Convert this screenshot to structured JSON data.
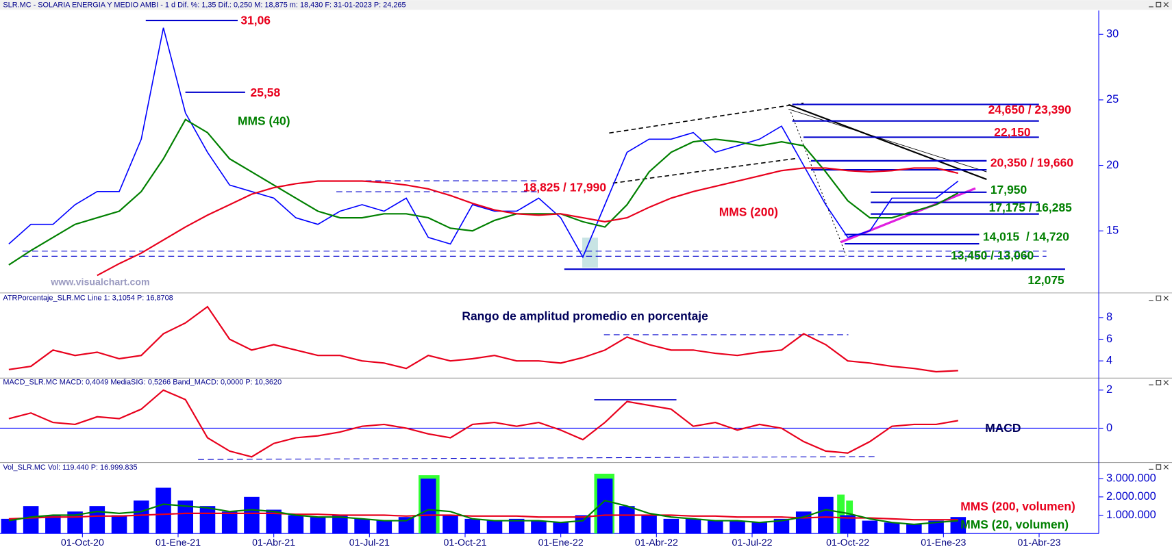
{
  "chart_data": [
    {
      "type": "line",
      "title": "SLR.MC - SOLARIA ENERGIA Y MEDIO AMBI - 1 d Dif. %: 1,35 Dif.: 0,250 M: 18,875 m: 18,430 F: 31-01-2023 P: 24,265",
      "watermark": "www.visualchart.com",
      "x": [
        -10,
        -7,
        -4,
        -1,
        2,
        5,
        8,
        11,
        14,
        17,
        20,
        23,
        26,
        29,
        32,
        35,
        38,
        41,
        44,
        47,
        50,
        53,
        56,
        59,
        62,
        65,
        68,
        71,
        74,
        77,
        80,
        83,
        86,
        89,
        92,
        95,
        98,
        101,
        104,
        107,
        110,
        113,
        116,
        119
      ],
      "xlim": [
        -11.2,
        137.9
      ],
      "ylim": [
        10.32,
        31.82
      ],
      "yticks": [
        15,
        20,
        25,
        30
      ],
      "series": [
        {
          "color": "#0000ff",
          "values": [
            14,
            15.5,
            15.5,
            17,
            18,
            18,
            22,
            30.5,
            24,
            21,
            18.5,
            18,
            17.5,
            16,
            15.5,
            16.5,
            17,
            16.5,
            17.5,
            14.5,
            14,
            17,
            16.5,
            16.5,
            17.5,
            16,
            13,
            17,
            21,
            22,
            22,
            22.5,
            21,
            21.5,
            22,
            23,
            20,
            17,
            14.5,
            15,
            17.5,
            17.5,
            17.5,
            18.8
          ]
        },
        {
          "name": "MMS (40)",
          "color": "#008000",
          "values": [
            12.4,
            13.5,
            14.5,
            15.5,
            16,
            16.5,
            18,
            20.5,
            23.5,
            22.5,
            20.5,
            19.5,
            18.5,
            17.5,
            16.5,
            16,
            16,
            16.3,
            16.3,
            16,
            15.2,
            15,
            15.8,
            16.3,
            16.3,
            16.3,
            15.7,
            15.3,
            17,
            19.5,
            21,
            21.8,
            22,
            21.8,
            21.5,
            21.8,
            21.5,
            19.5,
            17.3,
            16,
            16,
            16.5,
            17,
            17.9
          ]
        },
        {
          "name": "MMS (200)",
          "color": "#e8001c",
          "values": [
            null,
            null,
            null,
            null,
            11.6,
            12.5,
            13.3,
            14.3,
            15.3,
            16.2,
            17,
            17.8,
            18.3,
            18.6,
            18.8,
            18.8,
            18.8,
            18.7,
            18.5,
            18.2,
            17.7,
            17.1,
            16.6,
            16.3,
            16.2,
            16.3,
            16,
            15.7,
            16,
            16.8,
            17.5,
            18,
            18.4,
            18.8,
            19.2,
            19.6,
            19.8,
            19.8,
            19.6,
            19.5,
            19.6,
            19.8,
            19.8,
            19.4
          ]
        }
      ],
      "levels": [
        {
          "label": "31,06",
          "values": [
            31.06
          ],
          "color": "#e8001c"
        },
        {
          "label": "25,58",
          "values": [
            25.58
          ],
          "color": "#e8001c"
        },
        {
          "label": "18,825 / 17,990",
          "values": [
            18.825,
            17.99
          ],
          "color": "#e8001c"
        },
        {
          "label": "24,650 / 23,390",
          "values": [
            24.65,
            23.39
          ],
          "color": "#e8001c"
        },
        {
          "label": "22,150",
          "values": [
            22.15
          ],
          "color": "#e8001c"
        },
        {
          "label": "20,350 / 19,660",
          "values": [
            20.35,
            19.66
          ],
          "color": "#e8001c"
        },
        {
          "label": "17,950",
          "values": [
            17.95
          ],
          "color": "#008000"
        },
        {
          "label": "17,175 / 16,285",
          "values": [
            17.175,
            16.285
          ],
          "color": "#008000"
        },
        {
          "label": "14,015  / 14,720",
          "values": [
            14.015,
            14.72
          ],
          "color": "#008000"
        },
        {
          "label": "13,450 / 13,060",
          "values": [
            13.45,
            13.06
          ],
          "color": "#008000"
        },
        {
          "label": "12,075",
          "values": [
            12.075
          ],
          "color": "#008000"
        }
      ]
    },
    {
      "type": "line",
      "title": "ATRPorcentaje_SLR.MC Line 1: 3,1054 P: 16,8708",
      "subtitle": "Rango de amplitud promedio en porcentaje",
      "x": [
        -10,
        -7,
        -4,
        -1,
        2,
        5,
        8,
        11,
        14,
        17,
        20,
        23,
        26,
        29,
        32,
        35,
        38,
        41,
        44,
        47,
        50,
        53,
        56,
        59,
        62,
        65,
        68,
        71,
        74,
        77,
        80,
        83,
        86,
        89,
        92,
        95,
        98,
        101,
        104,
        107,
        110,
        113,
        116,
        119
      ],
      "xlim": [
        -11.2,
        137.9
      ],
      "ylim": [
        2.48,
        9.38
      ],
      "yticks": [
        4,
        6,
        8
      ],
      "series": [
        {
          "color": "#e8001c",
          "values": [
            3.2,
            3.5,
            5,
            4.5,
            4.8,
            4.2,
            4.5,
            6.5,
            7.5,
            9,
            6,
            5,
            5.5,
            5,
            4.5,
            4.5,
            4,
            3.8,
            3.3,
            4.5,
            4,
            4.2,
            4.5,
            4,
            4,
            3.8,
            4.3,
            5,
            6.2,
            5.5,
            5,
            5,
            4.7,
            4.5,
            4.8,
            5,
            6.5,
            5.5,
            4,
            3.8,
            3.5,
            3.3,
            3,
            3.1
          ]
        }
      ]
    },
    {
      "type": "line",
      "title": "MACD_SLR.MC MACD: 0,4049 MediaSIG: 0,5266 Band_MACD: 0,0000 P: 10,3620",
      "label": "MACD",
      "zero_line": true,
      "x": [
        -10,
        -7,
        -4,
        -1,
        2,
        5,
        8,
        11,
        14,
        17,
        20,
        23,
        26,
        29,
        32,
        35,
        38,
        41,
        44,
        47,
        50,
        53,
        56,
        59,
        62,
        65,
        68,
        71,
        74,
        77,
        80,
        83,
        86,
        89,
        92,
        95,
        98,
        101,
        104,
        107,
        110,
        113,
        116,
        119
      ],
      "xlim": [
        -11.2,
        137.9
      ],
      "ylim": [
        -1.76,
        2.12
      ],
      "yticks": [
        0,
        2
      ],
      "series": [
        {
          "color": "#e8001c",
          "values": [
            0.5,
            0.8,
            0.3,
            0.2,
            0.6,
            0.5,
            1,
            2,
            1.5,
            -0.5,
            -1.2,
            -1.5,
            -0.8,
            -0.5,
            -0.4,
            -0.2,
            0.1,
            0.2,
            0,
            -0.3,
            -0.5,
            0.2,
            0.3,
            0.1,
            0.3,
            -0.1,
            -0.6,
            0.3,
            1.4,
            1.2,
            1,
            0.1,
            0.3,
            -0.1,
            0.2,
            0,
            -0.7,
            -1.2,
            -1.3,
            -0.7,
            0.1,
            0.2,
            0.2,
            0.4
          ]
        }
      ]
    },
    {
      "type": "bar",
      "title": "Vol_SLR.MC Vol: 119.440 P: 16.999.835",
      "x": [
        -10,
        -7,
        -4,
        -1,
        2,
        5,
        8,
        11,
        14,
        17,
        20,
        23,
        26,
        29,
        32,
        35,
        38,
        41,
        44,
        47,
        50,
        53,
        56,
        59,
        62,
        65,
        68,
        71,
        74,
        77,
        80,
        83,
        86,
        89,
        92,
        95,
        98,
        101,
        104,
        107,
        110,
        113,
        116,
        119
      ],
      "xlim": [
        -11.2,
        137.9
      ],
      "ylim": [
        0,
        3350000
      ],
      "yticks": [
        {
          "value": 1000000,
          "label": "1.000.000"
        },
        {
          "value": 2000000,
          "label": "2.000.000"
        },
        {
          "value": 3000000,
          "label": "3.000.000"
        }
      ],
      "xticks": [
        {
          "value": 0,
          "label": "01-Oct-20"
        },
        {
          "value": 13,
          "label": "01-Ene-21"
        },
        {
          "value": 26,
          "label": "01-Abr-21"
        },
        {
          "value": 39,
          "label": "01-Jul-21"
        },
        {
          "value": 52,
          "label": "01-Oct-21"
        },
        {
          "value": 65,
          "label": "01-Ene-22"
        },
        {
          "value": 78,
          "label": "01-Abr-22"
        },
        {
          "value": 91,
          "label": "01-Jul-22"
        },
        {
          "value": 104,
          "label": "01-Oct-22"
        },
        {
          "value": 117,
          "label": "01-Ene-23"
        },
        {
          "value": 130,
          "label": "01-Abr-23"
        }
      ],
      "series": [
        {
          "type": "bar",
          "color": "#0000ff",
          "values": [
            800000,
            1500000,
            1000000,
            1200000,
            1500000,
            1000000,
            1800000,
            2500000,
            1800000,
            1500000,
            1200000,
            2000000,
            1300000,
            1000000,
            900000,
            1000000,
            800000,
            700000,
            900000,
            3000000,
            1000000,
            800000,
            700000,
            800000,
            700000,
            600000,
            1000000,
            3000000,
            1500000,
            1000000,
            800000,
            800000,
            700000,
            700000,
            600000,
            800000,
            1200000,
            2000000,
            1000000,
            700000,
            600000,
            500000,
            700000,
            900000
          ]
        },
        {
          "type": "line",
          "name": "MMS (200, volumen)",
          "color": "#e8001c",
          "values": [
            800000,
            850000,
            900000,
            900000,
            950000,
            950000,
            1000000,
            1050000,
            1100000,
            1100000,
            1100000,
            1100000,
            1100000,
            1050000,
            1050000,
            1000000,
            1000000,
            1000000,
            950000,
            1000000,
            1000000,
            950000,
            950000,
            950000,
            900000,
            900000,
            900000,
            1000000,
            1000000,
            1000000,
            1000000,
            950000,
            950000,
            900000,
            900000,
            900000,
            850000,
            900000,
            850000,
            850000,
            800000,
            750000,
            750000,
            750000
          ]
        },
        {
          "type": "line",
          "name": "MMS (20, volumen)",
          "color": "#008000",
          "values": [
            700000,
            900000,
            1000000,
            1000000,
            1200000,
            1100000,
            1200000,
            1600000,
            1500000,
            1400000,
            1200000,
            1300000,
            1200000,
            1000000,
            900000,
            900000,
            800000,
            700000,
            700000,
            1300000,
            1200000,
            800000,
            700000,
            700000,
            700000,
            600000,
            700000,
            1800000,
            1500000,
            1100000,
            900000,
            800000,
            700000,
            700000,
            600000,
            700000,
            900000,
            1300000,
            1100000,
            800000,
            600000,
            500000,
            600000,
            700000
          ]
        }
      ]
    }
  ]
}
